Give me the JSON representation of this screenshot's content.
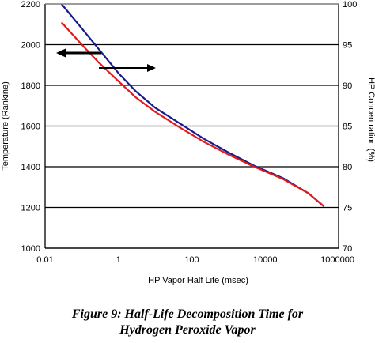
{
  "chart_data": {
    "type": "line",
    "xlabel": "HP Vapor Half Life (msec)",
    "ylabel": "Temperature (Rankine)",
    "y2label": "HP Concentration (%)",
    "x_scale": "log",
    "xlim": [
      0.01,
      1000000
    ],
    "ylim": [
      1000,
      2200
    ],
    "y2lim": [
      70,
      100
    ],
    "grid": "horizontal",
    "x_ticks": [
      "0.01",
      "1",
      "100",
      "10000",
      "1000000"
    ],
    "y_ticks": [
      "1000",
      "1200",
      "1400",
      "1600",
      "1800",
      "2000",
      "2200"
    ],
    "y2_ticks": [
      "70",
      "75",
      "80",
      "85",
      "90",
      "95",
      "100"
    ],
    "series": [
      {
        "color": "#1a1a8c",
        "axis": "left",
        "points": [
          [
            0.028,
            2200
          ],
          [
            0.1,
            2080
          ],
          [
            0.3,
            1975
          ],
          [
            1,
            1860
          ],
          [
            3,
            1770
          ],
          [
            10,
            1690
          ],
          [
            50,
            1610
          ],
          [
            200,
            1540
          ],
          [
            1000,
            1470
          ],
          [
            5000,
            1405
          ],
          [
            30000,
            1345
          ],
          [
            150000,
            1270
          ],
          [
            400000,
            1205
          ]
        ]
      },
      {
        "color": "#e41a1a",
        "axis": "left",
        "points": [
          [
            0.028,
            2110
          ],
          [
            0.1,
            2000
          ],
          [
            0.3,
            1910
          ],
          [
            1,
            1820
          ],
          [
            3,
            1740
          ],
          [
            10,
            1670
          ],
          [
            50,
            1590
          ],
          [
            200,
            1525
          ],
          [
            1000,
            1460
          ],
          [
            5000,
            1400
          ],
          [
            30000,
            1340
          ],
          [
            150000,
            1270
          ],
          [
            400000,
            1205
          ]
        ]
      }
    ],
    "annotations": [
      {
        "type": "arrow",
        "direction": "left",
        "meaning": "left axis (Temperature)"
      },
      {
        "type": "arrow",
        "direction": "right",
        "meaning": "right axis (HP Concentration)"
      }
    ]
  },
  "caption": {
    "line1": "Figure 9:  Half-Life Decomposition Time for",
    "line2": "Hydrogen Peroxide Vapor"
  }
}
